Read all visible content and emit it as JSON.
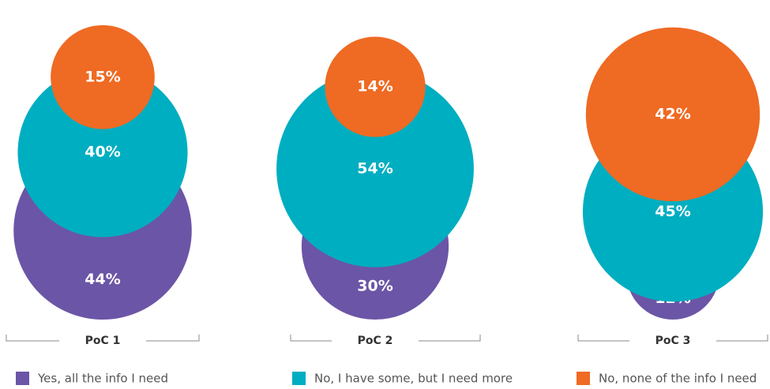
{
  "chart_data": {
    "type": "bubble-stack",
    "categories": [
      "PoC 1",
      "PoC 2",
      "PoC 3"
    ],
    "series": [
      {
        "name": "Yes, all the info I need",
        "color": "#6b55a6",
        "values": [
          44,
          30,
          12
        ],
        "value_labels": [
          "44%",
          "30%",
          "12%"
        ]
      },
      {
        "name": "No, I have some, but I need more",
        "color": "#00aec1",
        "values": [
          40,
          54,
          45
        ],
        "value_labels": [
          "40%",
          "54%",
          "45%"
        ]
      },
      {
        "name": "No, none of the info I need",
        "color": "#ef6a23",
        "values": [
          15,
          14,
          42
        ],
        "value_labels": [
          "15%",
          "14%",
          "42%"
        ]
      }
    ]
  }
}
